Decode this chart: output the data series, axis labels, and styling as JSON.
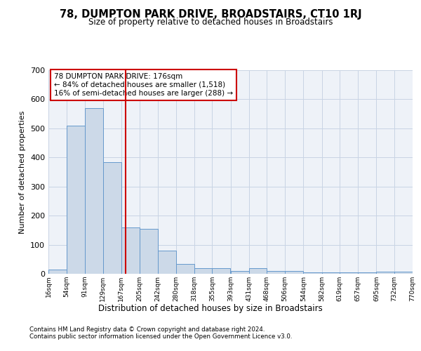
{
  "title": "78, DUMPTON PARK DRIVE, BROADSTAIRS, CT10 1RJ",
  "subtitle": "Size of property relative to detached houses in Broadstairs",
  "xlabel": "Distribution of detached houses by size in Broadstairs",
  "ylabel": "Number of detached properties",
  "footer1": "Contains HM Land Registry data © Crown copyright and database right 2024.",
  "footer2": "Contains public sector information licensed under the Open Government Licence v3.0.",
  "annotation_line1": "78 DUMPTON PARK DRIVE: 176sqm",
  "annotation_line2": "← 84% of detached houses are smaller (1,518)",
  "annotation_line3": "16% of semi-detached houses are larger (288) →",
  "property_size": 176,
  "bin_edges": [
    16,
    54,
    91,
    129,
    167,
    205,
    242,
    280,
    318,
    355,
    393,
    431,
    468,
    506,
    544,
    582,
    619,
    657,
    695,
    732,
    770
  ],
  "bar_heights": [
    15,
    510,
    570,
    385,
    160,
    155,
    80,
    35,
    20,
    20,
    10,
    20,
    10,
    10,
    5,
    5,
    5,
    5,
    8,
    8
  ],
  "bar_color": "#ccd9e8",
  "bar_edge_color": "#6699cc",
  "red_line_color": "#cc0000",
  "annotation_box_color": "#cc0000",
  "grid_color": "#c8d4e4",
  "background_color": "#eef2f8",
  "ylim": [
    0,
    700
  ],
  "yticks": [
    0,
    100,
    200,
    300,
    400,
    500,
    600,
    700
  ]
}
